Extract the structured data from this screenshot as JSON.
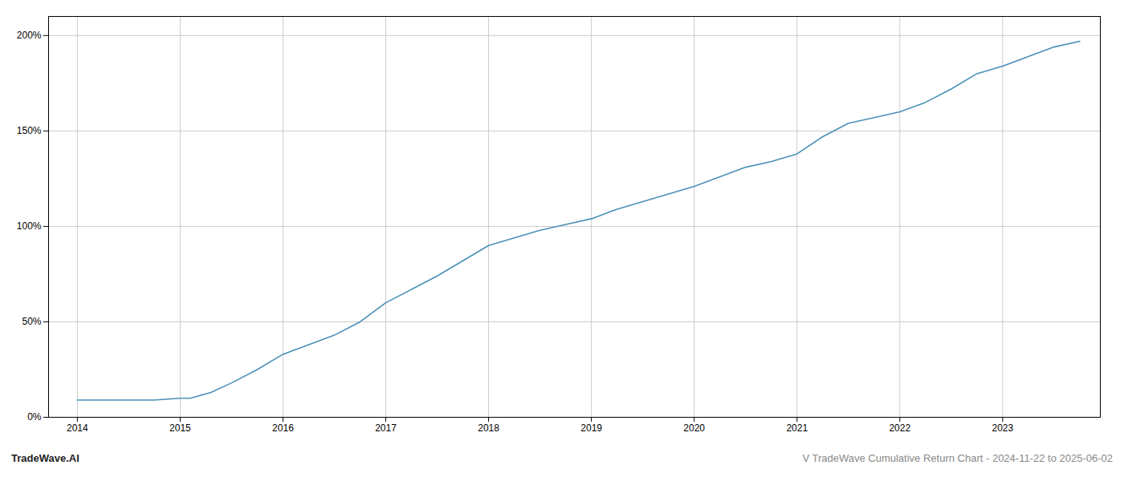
{
  "chart_data": {
    "type": "line",
    "title": "V TradeWave Cumulative Return Chart - 2024-11-22 to 2025-06-02",
    "annotations": [
      "TradeWave.AI"
    ],
    "x": [
      2014.0,
      2014.2,
      2014.5,
      2014.75,
      2015.0,
      2015.1,
      2015.3,
      2015.5,
      2015.75,
      2016.0,
      2016.25,
      2016.5,
      2016.75,
      2017.0,
      2017.25,
      2017.5,
      2017.75,
      2018.0,
      2018.25,
      2018.5,
      2018.75,
      2019.0,
      2019.25,
      2019.5,
      2019.75,
      2020.0,
      2020.25,
      2020.5,
      2020.75,
      2021.0,
      2021.25,
      2021.5,
      2021.75,
      2022.0,
      2022.25,
      2022.5,
      2022.75,
      2023.0,
      2023.25,
      2023.5,
      2023.75
    ],
    "values": [
      9,
      9,
      9,
      9,
      10,
      10,
      13,
      18,
      25,
      33,
      38,
      43,
      50,
      60,
      67,
      74,
      82,
      90,
      94,
      98,
      101,
      104,
      109,
      113,
      117,
      121,
      126,
      131,
      134,
      138,
      147,
      154,
      157,
      160,
      165,
      172,
      180,
      184,
      189,
      194,
      197
    ],
    "color": "#4a90b8",
    "xlim": [
      2013.72,
      2023.95
    ],
    "xticks": [
      2014,
      2015,
      2016,
      2017,
      2018,
      2019,
      2020,
      2021,
      2022,
      2023
    ],
    "ylim": [
      0,
      210
    ],
    "yticks": [
      {
        "value": 0,
        "label": "0%"
      },
      {
        "value": 50,
        "label": "50%"
      },
      {
        "value": 100,
        "label": "100%"
      },
      {
        "value": 150,
        "label": "150%"
      },
      {
        "value": 200,
        "label": "200%"
      }
    ],
    "grid": true
  }
}
